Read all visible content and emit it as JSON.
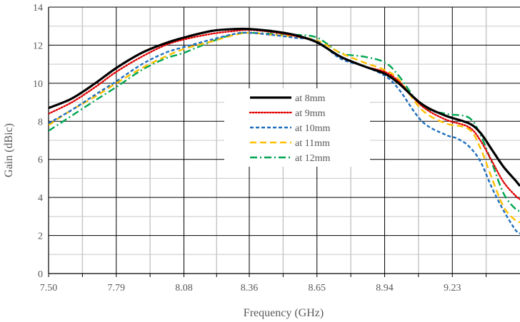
{
  "chart_data": {
    "type": "line",
    "xlabel": "Frequency (GHz)",
    "ylabel": "Gain (dBic)",
    "xlim": [
      7.5,
      9.52
    ],
    "ylim": [
      0,
      14
    ],
    "x_ticks": [
      "7.50",
      "7.79",
      "8.08",
      "8.36",
      "8.65",
      "8.94",
      "9.23"
    ],
    "y_ticks": [
      "0",
      "2",
      "4",
      "6",
      "8",
      "10",
      "12",
      "14"
    ],
    "grid": true,
    "legend_position": "center",
    "series": [
      {
        "name": "at 8mm",
        "color": "#000000",
        "dash": "solid",
        "x": [
          7.5,
          7.6,
          7.7,
          7.79,
          7.9,
          8.0,
          8.08,
          8.2,
          8.3,
          8.36,
          8.45,
          8.55,
          8.65,
          8.75,
          8.85,
          8.94,
          9.0,
          9.1,
          9.2,
          9.3,
          9.35,
          9.4,
          9.45,
          9.5,
          9.52
        ],
        "y": [
          8.7,
          9.2,
          10.0,
          10.8,
          11.6,
          12.1,
          12.4,
          12.75,
          12.85,
          12.85,
          12.75,
          12.55,
          12.15,
          11.4,
          10.9,
          10.5,
          10.0,
          8.9,
          8.3,
          7.9,
          7.4,
          6.5,
          5.6,
          4.9,
          4.6
        ]
      },
      {
        "name": "at 9mm",
        "color": "#e00000",
        "dash": "dot",
        "x": [
          7.5,
          7.6,
          7.7,
          7.79,
          7.9,
          8.0,
          8.08,
          8.2,
          8.3,
          8.36,
          8.45,
          8.55,
          8.65,
          8.75,
          8.85,
          8.94,
          9.0,
          9.1,
          9.2,
          9.3,
          9.35,
          9.4,
          9.45,
          9.5,
          9.52
        ],
        "y": [
          8.4,
          9.0,
          9.8,
          10.6,
          11.4,
          12.0,
          12.3,
          12.6,
          12.75,
          12.8,
          12.7,
          12.5,
          12.15,
          11.4,
          10.9,
          10.6,
          10.1,
          8.8,
          8.1,
          7.7,
          7.0,
          5.9,
          4.8,
          4.1,
          3.9
        ]
      },
      {
        "name": "at 10mm",
        "color": "#1f6fbf",
        "dash": "dash",
        "x": [
          7.5,
          7.6,
          7.7,
          7.79,
          7.9,
          8.0,
          8.08,
          8.2,
          8.3,
          8.36,
          8.45,
          8.55,
          8.65,
          8.75,
          8.85,
          8.94,
          9.0,
          9.1,
          9.2,
          9.25,
          9.3,
          9.35,
          9.4,
          9.45,
          9.5,
          9.52
        ],
        "y": [
          7.9,
          8.6,
          9.4,
          10.1,
          11.0,
          11.6,
          11.9,
          12.3,
          12.6,
          12.65,
          12.55,
          12.4,
          12.2,
          11.3,
          10.9,
          10.4,
          9.7,
          8.0,
          7.3,
          7.1,
          6.7,
          5.9,
          4.5,
          3.3,
          2.3,
          2.1
        ]
      },
      {
        "name": "at 11mm",
        "color": "#ffc000",
        "dash": "longdash",
        "x": [
          7.5,
          7.6,
          7.7,
          7.79,
          7.9,
          8.0,
          8.08,
          8.2,
          8.3,
          8.36,
          8.45,
          8.55,
          8.65,
          8.75,
          8.85,
          8.94,
          9.0,
          9.1,
          9.2,
          9.3,
          9.35,
          9.4,
          9.45,
          9.5,
          9.52
        ],
        "y": [
          7.8,
          8.6,
          9.3,
          10.0,
          10.8,
          11.4,
          11.8,
          12.2,
          12.55,
          12.65,
          12.55,
          12.45,
          12.25,
          11.6,
          11.1,
          10.7,
          10.2,
          8.6,
          7.9,
          7.6,
          6.6,
          5.0,
          3.5,
          2.8,
          2.7
        ]
      },
      {
        "name": "at 12mm",
        "color": "#00a651",
        "dash": "dashdot",
        "x": [
          7.5,
          7.6,
          7.7,
          7.79,
          7.9,
          8.0,
          8.08,
          8.2,
          8.3,
          8.36,
          8.45,
          8.55,
          8.65,
          8.75,
          8.85,
          8.94,
          9.0,
          9.1,
          9.2,
          9.3,
          9.35,
          9.4,
          9.45,
          9.5,
          9.52
        ],
        "y": [
          7.5,
          8.3,
          9.1,
          9.8,
          10.7,
          11.3,
          11.6,
          12.2,
          12.6,
          12.65,
          12.6,
          12.55,
          12.4,
          11.6,
          11.4,
          11.1,
          10.4,
          8.8,
          8.4,
          8.2,
          7.3,
          5.8,
          4.2,
          3.4,
          3.3
        ]
      }
    ]
  }
}
